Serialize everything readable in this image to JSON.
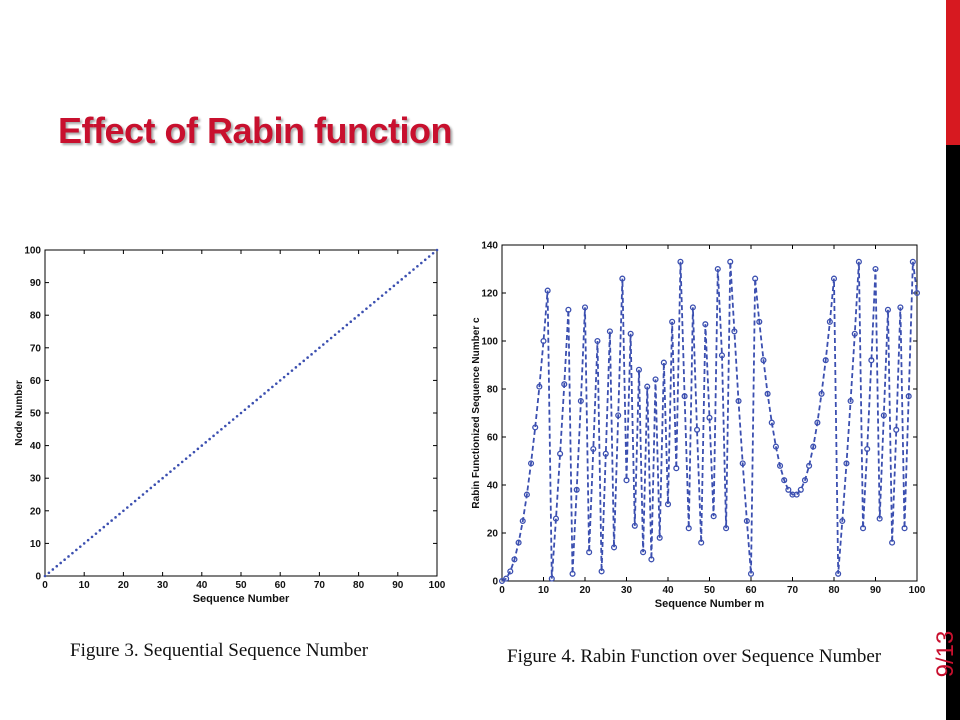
{
  "slide": {
    "title": "Effect of Rabin function",
    "page_number": "9/13"
  },
  "colors": {
    "title": "#c8102e",
    "series": "#3b4fb0",
    "side_bar_red": "#d71920",
    "side_bar_black": "#000000"
  },
  "chart_data": [
    {
      "type": "scatter",
      "caption": "Figure 3. Sequential Sequence Number",
      "xlabel": "Sequence Number",
      "ylabel": "Node Number",
      "xlim": [
        0,
        100
      ],
      "ylim": [
        0,
        100
      ],
      "xticks": [
        0,
        10,
        20,
        30,
        40,
        50,
        60,
        70,
        80,
        90,
        100
      ],
      "yticks": [
        0,
        10,
        20,
        30,
        40,
        50,
        60,
        70,
        80,
        90,
        100
      ],
      "grid": false,
      "series": [
        {
          "marker": "dot",
          "x": [
            0,
            1,
            2,
            3,
            4,
            5,
            6,
            7,
            8,
            9,
            10,
            11,
            12,
            13,
            14,
            15,
            16,
            17,
            18,
            19,
            20,
            21,
            22,
            23,
            24,
            25,
            26,
            27,
            28,
            29,
            30,
            31,
            32,
            33,
            34,
            35,
            36,
            37,
            38,
            39,
            40,
            41,
            42,
            43,
            44,
            45,
            46,
            47,
            48,
            49,
            50,
            51,
            52,
            53,
            54,
            55,
            56,
            57,
            58,
            59,
            60,
            61,
            62,
            63,
            64,
            65,
            66,
            67,
            68,
            69,
            70,
            71,
            72,
            73,
            74,
            75,
            76,
            77,
            78,
            79,
            80,
            81,
            82,
            83,
            84,
            85,
            86,
            87,
            88,
            89,
            90,
            91,
            92,
            93,
            94,
            95,
            96,
            97,
            98,
            99,
            100
          ],
          "y": [
            0,
            1,
            2,
            3,
            4,
            5,
            6,
            7,
            8,
            9,
            10,
            11,
            12,
            13,
            14,
            15,
            16,
            17,
            18,
            19,
            20,
            21,
            22,
            23,
            24,
            25,
            26,
            27,
            28,
            29,
            30,
            31,
            32,
            33,
            34,
            35,
            36,
            37,
            38,
            39,
            40,
            41,
            42,
            43,
            44,
            45,
            46,
            47,
            48,
            49,
            50,
            51,
            52,
            53,
            54,
            55,
            56,
            57,
            58,
            59,
            60,
            61,
            62,
            63,
            64,
            65,
            66,
            67,
            68,
            69,
            70,
            71,
            72,
            73,
            74,
            75,
            76,
            77,
            78,
            79,
            80,
            81,
            82,
            83,
            84,
            85,
            86,
            87,
            88,
            89,
            90,
            91,
            92,
            93,
            94,
            95,
            96,
            97,
            98,
            99,
            100
          ]
        }
      ]
    },
    {
      "type": "line",
      "caption": "Figure 4. Rabin Function over Sequence Number",
      "xlabel": "Sequence Number m",
      "ylabel": "Rabin Functionized Sequence Number c",
      "xlim": [
        0,
        100
      ],
      "ylim": [
        0,
        140
      ],
      "xticks": [
        0,
        10,
        20,
        30,
        40,
        50,
        60,
        70,
        80,
        90,
        100
      ],
      "yticks": [
        0,
        20,
        40,
        60,
        80,
        100,
        120,
        140
      ],
      "grid": false,
      "series": [
        {
          "style": "dashed line with circle markers",
          "x": [
            0,
            1,
            2,
            3,
            4,
            5,
            6,
            7,
            8,
            9,
            10,
            11,
            12,
            13,
            14,
            15,
            16,
            17,
            18,
            19,
            20,
            21,
            22,
            23,
            24,
            25,
            26,
            27,
            28,
            29,
            30,
            31,
            32,
            33,
            34,
            35,
            36,
            37,
            38,
            39,
            40,
            41,
            42,
            43,
            44,
            45,
            46,
            47,
            48,
            49,
            50,
            51,
            52,
            53,
            54,
            55,
            56,
            57,
            58,
            59,
            60,
            61,
            62,
            63,
            64,
            65,
            66,
            67,
            68,
            69,
            70,
            71,
            72,
            73,
            74,
            75,
            76,
            77,
            78,
            79,
            80,
            81,
            82,
            83,
            84,
            85,
            86,
            87,
            88,
            89,
            90,
            91,
            92,
            93,
            94,
            95,
            96,
            97,
            98,
            99,
            100
          ],
          "y": [
            0,
            1,
            4,
            9,
            16,
            25,
            36,
            49,
            64,
            81,
            100,
            121,
            1,
            26,
            53,
            82,
            113,
            3,
            38,
            75,
            114,
            12,
            55,
            100,
            4,
            53,
            104,
            14,
            69,
            126,
            42,
            103,
            23,
            88,
            12,
            81,
            9,
            84,
            18,
            91,
            32,
            108,
            47,
            133,
            77,
            22,
            114,
            63,
            16,
            107,
            68,
            27,
            130,
            94,
            22,
            133,
            104,
            75,
            49,
            25,
            3,
            126,
            108,
            92,
            78,
            66,
            56,
            48,
            42,
            38,
            36,
            36,
            38,
            42,
            48,
            56,
            66,
            78,
            92,
            108,
            126,
            3,
            25,
            49,
            75,
            103,
            133,
            22,
            55,
            92,
            130,
            26,
            69,
            113,
            16,
            63,
            114,
            22,
            77,
            133,
            120
          ]
        }
      ]
    }
  ]
}
